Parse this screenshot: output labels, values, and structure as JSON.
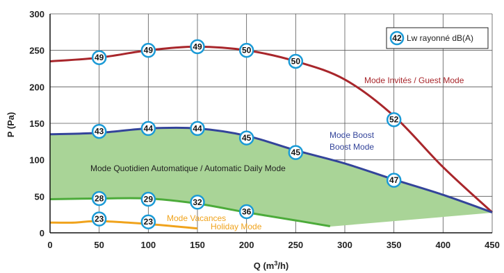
{
  "chart_data": {
    "type": "line",
    "xlabel_main": "Q (m",
    "xlabel_sup": "3",
    "xlabel_tail": "/h)",
    "ylabel": "P (Pa)",
    "xlim": [
      0,
      450
    ],
    "ylim": [
      0,
      300
    ],
    "x_ticks": [
      "0",
      "50",
      "100",
      "150",
      "200",
      "250",
      "300",
      "350",
      "400",
      "450"
    ],
    "y_ticks": [
      "0",
      "50",
      "100",
      "150",
      "200",
      "250",
      "300"
    ],
    "grid": true,
    "legend": {
      "marker": "42",
      "text": "Lw rayonné dB(A)",
      "position": "top-right"
    },
    "area_label": "Mode Quotidien Automatique / Automatic Daily Mode",
    "series": [
      {
        "name": "Mode Invités / Guest Mode",
        "color": "#a8262b",
        "x": [
          0,
          50,
          100,
          150,
          200,
          250,
          300,
          350,
          400,
          450
        ],
        "y": [
          235,
          240,
          250,
          255,
          250,
          235,
          210,
          160,
          90,
          28
        ],
        "labels": [
          {
            "x": 50,
            "y": 240,
            "value": "49"
          },
          {
            "x": 100,
            "y": 250,
            "value": "49"
          },
          {
            "x": 150,
            "y": 255,
            "value": "49"
          },
          {
            "x": 200,
            "y": 250,
            "value": "50"
          },
          {
            "x": 250,
            "y": 235,
            "value": "50"
          },
          {
            "x": 350,
            "y": 155,
            "value": "52"
          }
        ]
      },
      {
        "name_lines": [
          "Mode Boost",
          "Boost Mode"
        ],
        "color": "#33449a",
        "x": [
          0,
          50,
          100,
          150,
          200,
          250,
          300,
          350,
          400,
          450
        ],
        "y": [
          135,
          137,
          143,
          143,
          133,
          113,
          95,
          73,
          52,
          28
        ],
        "labels": [
          {
            "x": 50,
            "y": 139,
            "value": "43"
          },
          {
            "x": 100,
            "y": 143,
            "value": "44"
          },
          {
            "x": 150,
            "y": 143,
            "value": "44"
          },
          {
            "x": 200,
            "y": 130,
            "value": "45"
          },
          {
            "x": 250,
            "y": 110,
            "value": "45"
          },
          {
            "x": 350,
            "y": 72,
            "value": "47"
          }
        ]
      },
      {
        "color": "#4cab3a",
        "x": [
          0,
          50,
          100,
          150,
          200,
          250,
          285
        ],
        "y": [
          46,
          47,
          47,
          40,
          28,
          17,
          9
        ],
        "labels": [
          {
            "x": 50,
            "y": 47,
            "value": "28"
          },
          {
            "x": 100,
            "y": 46,
            "value": "29"
          },
          {
            "x": 150,
            "y": 42,
            "value": "32"
          },
          {
            "x": 200,
            "y": 29,
            "value": "36"
          }
        ]
      },
      {
        "name_lines": [
          "Mode Vacances",
          "Holiday Mode"
        ],
        "color": "#f0a31c",
        "x": [
          0,
          25,
          50,
          100,
          150
        ],
        "y": [
          14,
          14,
          16,
          12,
          6
        ],
        "labels": [
          {
            "x": 50,
            "y": 19,
            "value": "23"
          },
          {
            "x": 100,
            "y": 15,
            "value": "23"
          }
        ]
      }
    ]
  }
}
